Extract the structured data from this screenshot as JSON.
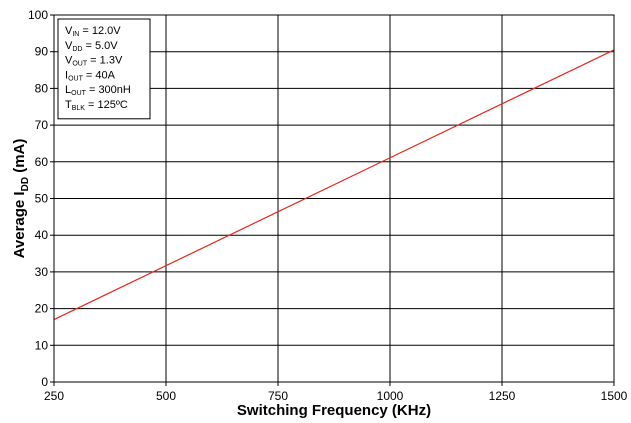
{
  "chart_data": {
    "type": "line",
    "xlabel": "Switching Frequency (KHz)",
    "ylabel": {
      "main": "Average I",
      "sub": "DD",
      "unit": " (mA)"
    },
    "xlim": [
      250,
      1500
    ],
    "ylim": [
      0,
      100
    ],
    "xticks": [
      250,
      500,
      750,
      1000,
      1250,
      1500
    ],
    "yticks": [
      0,
      10,
      20,
      30,
      40,
      50,
      60,
      70,
      80,
      90,
      100
    ],
    "grid": true,
    "line_color": "#e8281e",
    "series": [
      {
        "x": [
          250,
          1500
        ],
        "y": [
          17,
          90.5
        ]
      }
    ],
    "conditions": [
      {
        "main": "V",
        "sub": "IN",
        "value": " = 12.0V"
      },
      {
        "main": "V",
        "sub": "DD",
        "value": " = 5.0V"
      },
      {
        "main": "V",
        "sub": "OUT",
        "value": " = 1.3V"
      },
      {
        "main": "I",
        "sub": "OUT",
        "value": " = 40A"
      },
      {
        "main": "L",
        "sub": "OUT",
        "value": " = 300nH"
      },
      {
        "main": "T",
        "sub": "BLK",
        "value": " = 125ºC"
      }
    ]
  }
}
